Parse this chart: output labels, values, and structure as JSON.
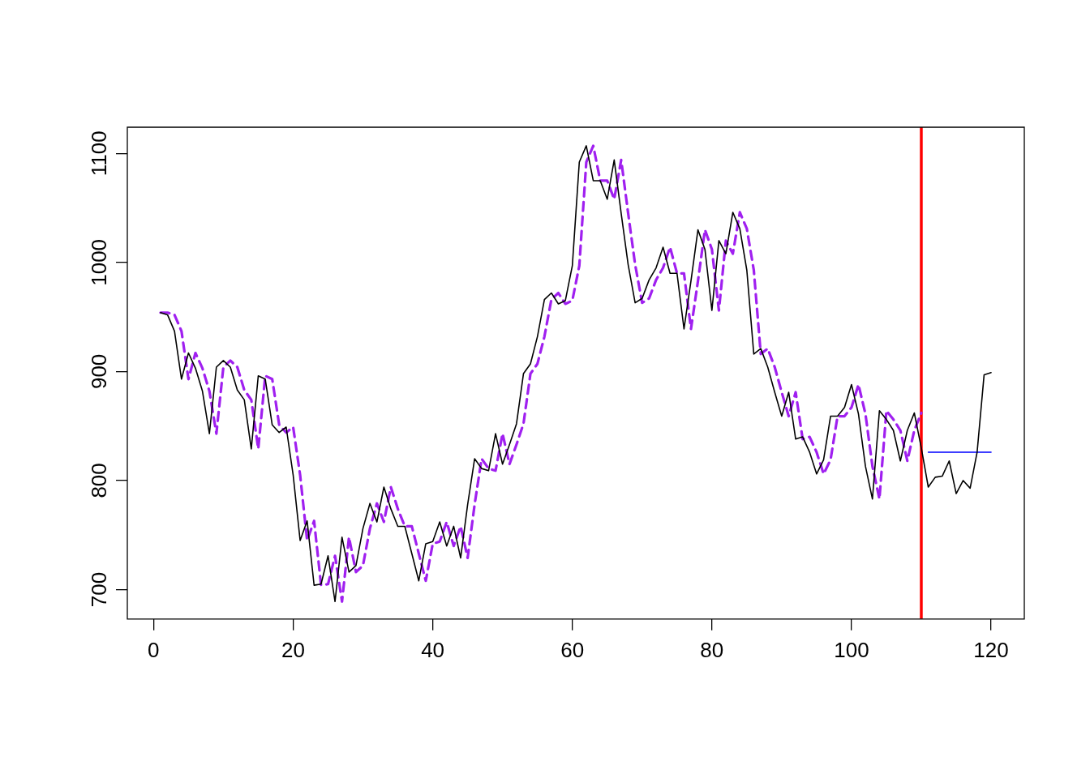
{
  "chart_data": {
    "type": "line",
    "xlim": [
      -3.76,
      124.76
    ],
    "xticks": [
      0,
      20,
      40,
      60,
      80,
      100,
      120
    ],
    "ylim": [
      673,
      1124
    ],
    "yticks": [
      700,
      800,
      900,
      1000,
      1100
    ],
    "grid": false,
    "legend": false,
    "marker": "none",
    "ref_lines": [
      {
        "axis": "x",
        "value": 110,
        "color": "#ff0000"
      }
    ],
    "series": [
      {
        "color": "#000000",
        "line_style": "solid",
        "x": [
          1,
          2,
          3,
          4,
          5,
          6,
          7,
          8,
          9,
          10,
          11,
          12,
          13,
          14,
          15,
          16,
          17,
          18,
          19,
          20,
          21,
          22,
          23,
          24,
          25,
          26,
          27,
          28,
          29,
          30,
          31,
          32,
          33,
          34,
          35,
          36,
          37,
          38,
          39,
          40,
          41,
          42,
          43,
          44,
          45,
          46,
          47,
          48,
          49,
          50,
          51,
          52,
          53,
          54,
          55,
          56,
          57,
          58,
          59,
          60,
          61,
          62,
          63,
          64,
          65,
          66,
          67,
          68,
          69,
          70,
          71,
          72,
          73,
          74,
          75,
          76,
          77,
          78,
          79,
          80,
          81,
          82,
          83,
          84,
          85,
          86,
          87,
          88,
          89,
          90,
          91,
          92,
          93,
          94,
          95,
          96,
          97,
          98,
          99,
          100,
          101,
          102,
          103,
          104,
          105,
          106,
          107,
          108,
          109,
          110,
          111,
          112,
          113,
          114,
          115,
          116,
          117,
          118,
          119,
          120
        ],
        "values": [
          954,
          952,
          937,
          893,
          917,
          903,
          882,
          843,
          904,
          910,
          904,
          883,
          874,
          829,
          896,
          893,
          851,
          844,
          849,
          805,
          745,
          763,
          704,
          705,
          731,
          689,
          748,
          716,
          722,
          756,
          779,
          762,
          794,
          774,
          758,
          758,
          733,
          708,
          742,
          744,
          762,
          740,
          758,
          729,
          778,
          820,
          811,
          809,
          843,
          815,
          833,
          852,
          898,
          907,
          932,
          966,
          972,
          962,
          965,
          997,
          1092,
          1107,
          1075,
          1075,
          1058,
          1094,
          1045,
          998,
          963,
          967,
          984,
          995,
          1014,
          990,
          990,
          939,
          983,
          1030,
          1012,
          956,
          1020,
          1008,
          1046,
          1031,
          993,
          916,
          921,
          904,
          881,
          859,
          881,
          838,
          840,
          826,
          806,
          819,
          859,
          859,
          867,
          888,
          861,
          813,
          783,
          864,
          856,
          846,
          818,
          846,
          862,
          830,
          794,
          803,
          804,
          818,
          788,
          800,
          793,
          826,
          897,
          899
        ]
      },
      {
        "color": "#a020f0",
        "line_style": "dashed",
        "x": [
          1,
          2,
          3,
          4,
          5,
          6,
          7,
          8,
          9,
          10,
          11,
          12,
          13,
          14,
          15,
          16,
          17,
          18,
          19,
          20,
          21,
          22,
          23,
          24,
          25,
          26,
          27,
          28,
          29,
          30,
          31,
          32,
          33,
          34,
          35,
          36,
          37,
          38,
          39,
          40,
          41,
          42,
          43,
          44,
          45,
          46,
          47,
          48,
          49,
          50,
          51,
          52,
          53,
          54,
          55,
          56,
          57,
          58,
          59,
          60,
          61,
          62,
          63,
          64,
          65,
          66,
          67,
          68,
          69,
          70,
          71,
          72,
          73,
          74,
          75,
          76,
          77,
          78,
          79,
          80,
          81,
          82,
          83,
          84,
          85,
          86,
          87,
          88,
          89,
          90,
          91,
          92,
          93,
          94,
          95,
          96,
          97,
          98,
          99,
          100,
          101,
          102,
          103,
          104,
          105,
          106,
          107,
          108,
          109,
          110
        ],
        "values": [
          954,
          954,
          952,
          937,
          893,
          917,
          903,
          882,
          843,
          904,
          910,
          904,
          883,
          874,
          829,
          896,
          893,
          851,
          844,
          849,
          805,
          745,
          763,
          704,
          705,
          731,
          689,
          748,
          716,
          722,
          756,
          779,
          762,
          794,
          774,
          758,
          758,
          733,
          708,
          742,
          744,
          762,
          740,
          758,
          729,
          778,
          820,
          811,
          809,
          843,
          815,
          833,
          852,
          898,
          907,
          932,
          966,
          972,
          962,
          965,
          997,
          1092,
          1107,
          1075,
          1075,
          1058,
          1094,
          1045,
          998,
          963,
          967,
          984,
          995,
          1014,
          990,
          990,
          939,
          983,
          1030,
          1012,
          956,
          1020,
          1008,
          1046,
          1031,
          993,
          916,
          921,
          904,
          881,
          859,
          881,
          838,
          840,
          826,
          806,
          819,
          859,
          859,
          867,
          888,
          861,
          813,
          783,
          864,
          856,
          846,
          818,
          846,
          862
        ]
      },
      {
        "color": "#0000ff",
        "line_style": "solid",
        "x": [
          111,
          120
        ],
        "values": [
          826,
          826
        ]
      }
    ]
  }
}
